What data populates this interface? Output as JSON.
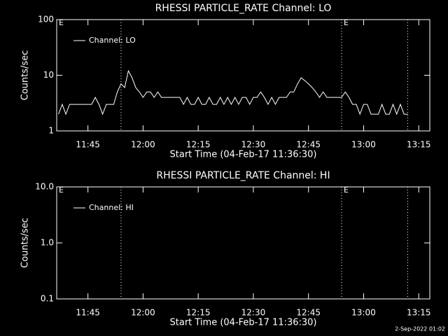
{
  "chart_data": [
    {
      "type": "line",
      "title": "RHESSI PARTICLE_RATE Channel: LO",
      "xlabel": "Start Time (04-Feb-17 11:36:30)",
      "ylabel": "Counts/sec",
      "log_y": true,
      "ylim": [
        1,
        100
      ],
      "yticks": [
        1,
        10,
        100
      ],
      "xlim": [
        "11:36:30",
        "13:18"
      ],
      "xticks": [
        "11:45",
        "12:00",
        "12:15",
        "12:30",
        "12:45",
        "13:00",
        "13:15"
      ],
      "vlines": [
        "11:54",
        "12:54",
        "13:12"
      ],
      "annotations": [
        {
          "text": "E",
          "x": "11:36:30"
        },
        {
          "text": "E",
          "x": "12:54"
        }
      ],
      "legend": "upper left",
      "x": [
        "11:37",
        "11:38",
        "11:39",
        "11:40",
        "11:41",
        "11:42",
        "11:43",
        "11:44",
        "11:45",
        "11:46",
        "11:47",
        "11:48",
        "11:49",
        "11:50",
        "11:51",
        "11:52",
        "11:53",
        "11:54",
        "11:55",
        "11:56",
        "11:57",
        "11:58",
        "11:59",
        "12:00",
        "12:01",
        "12:02",
        "12:03",
        "12:04",
        "12:05",
        "12:06",
        "12:07",
        "12:08",
        "12:09",
        "12:10",
        "12:11",
        "12:12",
        "12:13",
        "12:14",
        "12:15",
        "12:16",
        "12:17",
        "12:18",
        "12:19",
        "12:20",
        "12:21",
        "12:22",
        "12:23",
        "12:24",
        "12:25",
        "12:26",
        "12:27",
        "12:28",
        "12:29",
        "12:30",
        "12:31",
        "12:32",
        "12:33",
        "12:34",
        "12:35",
        "12:36",
        "12:37",
        "12:38",
        "12:39",
        "12:40",
        "12:41",
        "12:42",
        "12:43",
        "12:44",
        "12:45",
        "12:46",
        "12:47",
        "12:48",
        "12:49",
        "12:50",
        "12:51",
        "12:52",
        "12:53",
        "12:54",
        "12:55",
        "12:56",
        "12:57",
        "12:58",
        "12:59",
        "13:00",
        "13:01",
        "13:02",
        "13:03",
        "13:04",
        "13:05",
        "13:06",
        "13:07",
        "13:08",
        "13:09",
        "13:10",
        "13:11",
        "13:12"
      ],
      "series": [
        {
          "name": "Channel: LO",
          "color": "#ffffff",
          "values": [
            2,
            3,
            2,
            3,
            3,
            3,
            3,
            3,
            3,
            3,
            4,
            3,
            2,
            3,
            3,
            3,
            5,
            7,
            6,
            12,
            9,
            6,
            5,
            4,
            5,
            5,
            4,
            5,
            4,
            4,
            4,
            4,
            4,
            4,
            3,
            4,
            3,
            3,
            4,
            3,
            3,
            4,
            3,
            3,
            4,
            3,
            4,
            3,
            4,
            3,
            4,
            4,
            3,
            4,
            4,
            5,
            4,
            3,
            4,
            3,
            4,
            4,
            4,
            5,
            5,
            7,
            9,
            8,
            7,
            6,
            5,
            4,
            5,
            4,
            4,
            4,
            4,
            4,
            5,
            4,
            3,
            3,
            2,
            3,
            3,
            2,
            2,
            2,
            3,
            2,
            2,
            3,
            2,
            3,
            2,
            2
          ]
        }
      ]
    },
    {
      "type": "line",
      "title": "RHESSI PARTICLE_RATE Channel: HI",
      "xlabel": "Start Time (04-Feb-17 11:36:30)",
      "ylabel": "Counts/sec",
      "log_y": true,
      "ylim": [
        0.1,
        10
      ],
      "yticks": [
        0.1,
        {
          "value": 1,
          "label": "1.0"
        },
        {
          "value": 10,
          "label": "10.0"
        }
      ],
      "xlim": [
        "11:36:30",
        "13:18"
      ],
      "xticks": [
        "11:45",
        "12:00",
        "12:15",
        "12:30",
        "12:45",
        "13:00",
        "13:15"
      ],
      "vlines": [
        "11:54",
        "12:54",
        "13:12"
      ],
      "annotations": [
        {
          "text": "E",
          "x": "11:36:30"
        },
        {
          "text": "E",
          "x": "12:54"
        }
      ],
      "legend": "upper left",
      "x": [],
      "series": [
        {
          "name": "Channel: HI",
          "color": "#ffffff",
          "values": []
        }
      ]
    }
  ],
  "footer": "2-Sep-2022 01:02"
}
